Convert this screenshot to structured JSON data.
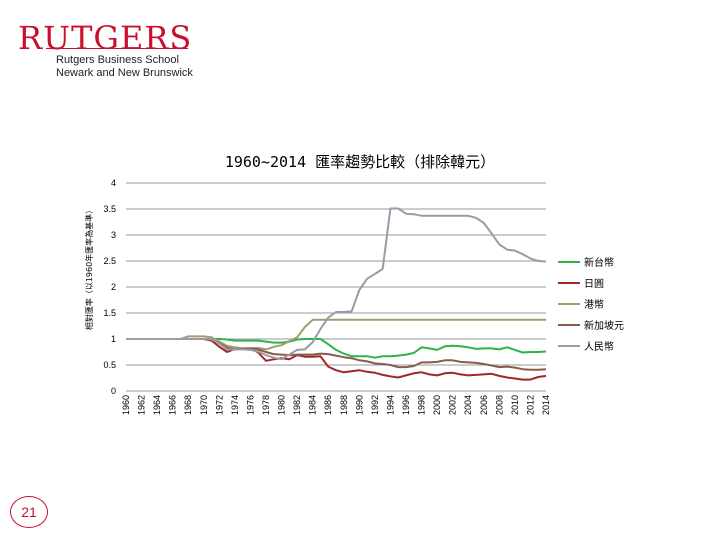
{
  "logo": {
    "word": "RUTGERS",
    "line1": "Rutgers Business School",
    "line2": "Newark and New Brunswick"
  },
  "page_number": "21",
  "colors": {
    "ntd": "#2eb34a",
    "jpy": "#a0282a",
    "hkd": "#a89a6a",
    "sgd": "#8a5a4c",
    "cny": "#9a9aa8",
    "grid": "#999999",
    "brand": "#c8102e"
  },
  "chart_data": {
    "type": "line",
    "title": "1960~2014 匯率趨勢比較（排除韓元）",
    "ylabel": "相對匯率（以1960年匯率為基準）",
    "ylim": [
      0,
      4
    ],
    "yticks": [
      0,
      0.5,
      1,
      1.5,
      2,
      2.5,
      3,
      3.5,
      4
    ],
    "ytick_labels": [
      "0",
      "0.5",
      "1",
      "1.5",
      "2",
      "2.5",
      "3",
      "3.5",
      "4"
    ],
    "x": [
      1960,
      1961,
      1962,
      1963,
      1964,
      1965,
      1966,
      1967,
      1968,
      1969,
      1970,
      1971,
      1972,
      1973,
      1974,
      1975,
      1976,
      1977,
      1978,
      1979,
      1980,
      1981,
      1982,
      1983,
      1984,
      1985,
      1986,
      1987,
      1988,
      1989,
      1990,
      1991,
      1992,
      1993,
      1994,
      1995,
      1996,
      1997,
      1998,
      1999,
      2000,
      2001,
      2002,
      2003,
      2004,
      2005,
      2006,
      2007,
      2008,
      2009,
      2010,
      2011,
      2012,
      2013,
      2014
    ],
    "xtick_labels": [
      "1960",
      "1962",
      "1964",
      "1966",
      "1968",
      "1970",
      "1972",
      "1974",
      "1976",
      "1978",
      "1980",
      "1982",
      "1984",
      "1986",
      "1988",
      "1990",
      "1992",
      "1994",
      "1996",
      "1998",
      "2000",
      "2002",
      "2004",
      "2006",
      "2008",
      "2010",
      "2012",
      "2014"
    ],
    "legend_position": "right",
    "series": [
      {
        "name": "新台幣",
        "color": "#2eb34a",
        "values": [
          1,
          1,
          1,
          1,
          1,
          1,
          1,
          1,
          1,
          1,
          1,
          1,
          1,
          0.99,
          0.97,
          0.97,
          0.97,
          0.97,
          0.95,
          0.93,
          0.93,
          0.95,
          0.99,
          1.0,
          1.0,
          1.0,
          0.9,
          0.79,
          0.72,
          0.67,
          0.67,
          0.67,
          0.64,
          0.67,
          0.67,
          0.68,
          0.7,
          0.73,
          0.84,
          0.82,
          0.79,
          0.86,
          0.87,
          0.86,
          0.84,
          0.81,
          0.82,
          0.82,
          0.8,
          0.84,
          0.79,
          0.74,
          0.75,
          0.75,
          0.76
        ]
      },
      {
        "name": "日圓",
        "color": "#a0282a",
        "values": [
          1,
          1,
          1,
          1,
          1,
          1,
          1,
          1,
          1,
          1,
          1,
          0.97,
          0.85,
          0.75,
          0.81,
          0.82,
          0.82,
          0.74,
          0.58,
          0.61,
          0.63,
          0.61,
          0.69,
          0.66,
          0.66,
          0.67,
          0.47,
          0.4,
          0.36,
          0.38,
          0.4,
          0.37,
          0.35,
          0.31,
          0.28,
          0.26,
          0.3,
          0.34,
          0.36,
          0.32,
          0.3,
          0.34,
          0.35,
          0.32,
          0.3,
          0.31,
          0.32,
          0.33,
          0.29,
          0.26,
          0.24,
          0.22,
          0.22,
          0.27,
          0.29
        ]
      },
      {
        "name": "港幣",
        "color": "#a89a6a",
        "values": [
          1,
          1,
          1,
          1,
          1,
          1,
          1,
          1,
          1.05,
          1.05,
          1.05,
          1.03,
          0.95,
          0.87,
          0.84,
          0.82,
          0.82,
          0.83,
          0.8,
          0.85,
          0.88,
          0.96,
          1.03,
          1.23,
          1.37,
          1.37,
          1.37,
          1.37,
          1.37,
          1.37,
          1.37,
          1.37,
          1.37,
          1.37,
          1.37,
          1.37,
          1.37,
          1.37,
          1.37,
          1.37,
          1.37,
          1.37,
          1.37,
          1.37,
          1.37,
          1.37,
          1.37,
          1.37,
          1.37,
          1.37,
          1.37,
          1.37,
          1.37,
          1.37,
          1.37
        ]
      },
      {
        "name": "新加坡元",
        "color": "#8a5a4c",
        "values": [
          1,
          1,
          1,
          1,
          1,
          1,
          1,
          1,
          1,
          1,
          1,
          0.98,
          0.92,
          0.83,
          0.8,
          0.81,
          0.82,
          0.8,
          0.75,
          0.71,
          0.7,
          0.69,
          0.7,
          0.7,
          0.7,
          0.72,
          0.71,
          0.68,
          0.65,
          0.63,
          0.59,
          0.57,
          0.53,
          0.52,
          0.5,
          0.46,
          0.46,
          0.48,
          0.55,
          0.55,
          0.56,
          0.59,
          0.59,
          0.56,
          0.55,
          0.54,
          0.52,
          0.49,
          0.46,
          0.47,
          0.45,
          0.42,
          0.41,
          0.41,
          0.42
        ]
      },
      {
        "name": "人民幣",
        "color": "#9a9aa8",
        "values": [
          1,
          1,
          1,
          1,
          1,
          1,
          1,
          1,
          1,
          1,
          1,
          1,
          0.91,
          0.8,
          0.8,
          0.8,
          0.79,
          0.76,
          0.69,
          0.64,
          0.61,
          0.7,
          0.79,
          0.8,
          0.94,
          1.19,
          1.41,
          1.52,
          1.52,
          1.53,
          1.94,
          2.16,
          2.25,
          2.35,
          3.51,
          3.51,
          3.41,
          3.4,
          3.37,
          3.37,
          3.37,
          3.37,
          3.37,
          3.37,
          3.37,
          3.33,
          3.23,
          3.03,
          2.82,
          2.72,
          2.7,
          2.63,
          2.55,
          2.5,
          2.49
        ]
      }
    ]
  }
}
